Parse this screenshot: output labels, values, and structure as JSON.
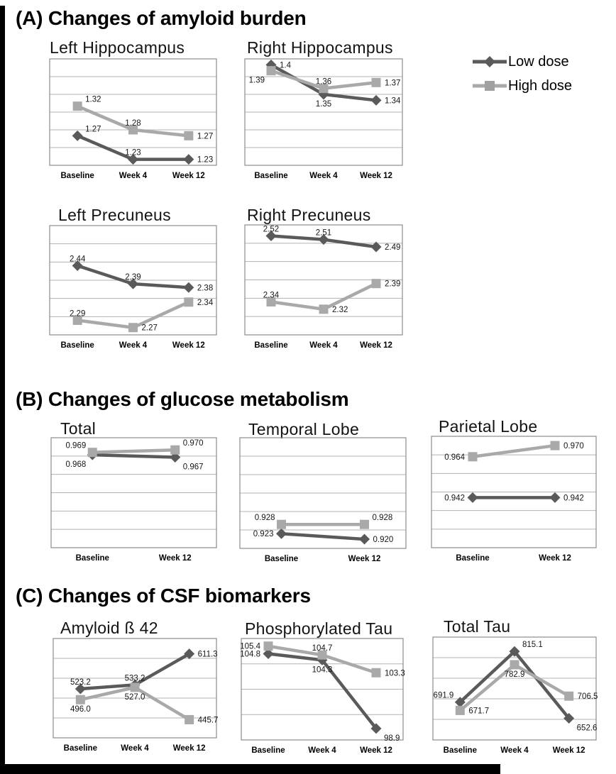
{
  "page": {
    "background": "#ffffff",
    "frame_color": "#000000"
  },
  "sections": [
    {
      "id": "A",
      "title": "(A) Changes of amyloid burden"
    },
    {
      "id": "B",
      "title": "(B) Changes of glucose metabolism"
    },
    {
      "id": "C",
      "title": "(C) Changes of CSF biomarkers"
    }
  ],
  "legend": {
    "position": "top-right",
    "items": [
      {
        "label": "Low dose",
        "series": "low"
      },
      {
        "label": "High dose",
        "series": "high"
      }
    ]
  },
  "series_styles": {
    "low": {
      "color": "#5a5a5a",
      "marker": "diamond"
    },
    "high": {
      "color": "#a9a9a9",
      "marker": "square"
    }
  },
  "chart_data": [
    {
      "id": "left-hippocampus",
      "section": "A",
      "type": "line",
      "title": "Left Hippocampus",
      "categories": [
        "Baseline",
        "Week 4",
        "Week 12"
      ],
      "ylim": [
        1.22,
        1.4
      ],
      "grid_divisions": 6,
      "grid": true,
      "series": [
        {
          "name": "Low dose",
          "key": "low",
          "values": [
            1.27,
            1.23,
            1.23
          ],
          "labels": [
            "1.27",
            "1.23",
            "1.23"
          ],
          "label_pos": [
            "above-right",
            "above",
            "right"
          ]
        },
        {
          "name": "High dose",
          "key": "high",
          "values": [
            1.32,
            1.28,
            1.27
          ],
          "labels": [
            "1.32",
            "1.28",
            "1.27"
          ],
          "label_pos": [
            "above-right",
            "above",
            "right"
          ]
        }
      ]
    },
    {
      "id": "right-hippocampus",
      "section": "A",
      "type": "line",
      "title": "Right Hippocampus",
      "categories": [
        "Baseline",
        "Week 4",
        "Week 12"
      ],
      "ylim": [
        1.23,
        1.41
      ],
      "grid_divisions": 6,
      "grid": true,
      "series": [
        {
          "name": "Low dose",
          "key": "low",
          "values": [
            1.4,
            1.35,
            1.34
          ],
          "labels": [
            "1.4",
            "1.35",
            "1.34"
          ],
          "label_pos": [
            "right",
            "below",
            "right"
          ]
        },
        {
          "name": "High dose",
          "key": "high",
          "values": [
            1.39,
            1.36,
            1.37
          ],
          "labels": [
            "1.39",
            "1.36",
            "1.37"
          ],
          "label_pos": [
            "below-left",
            "above",
            "right"
          ]
        }
      ]
    },
    {
      "id": "left-precuneus",
      "section": "A",
      "type": "line",
      "title": "Left Precuneus",
      "categories": [
        "Baseline",
        "Week 4",
        "Week 12"
      ],
      "ylim": [
        2.25,
        2.55
      ],
      "grid_divisions": 6,
      "grid": true,
      "series": [
        {
          "name": "Low dose",
          "key": "low",
          "values": [
            2.44,
            2.39,
            2.38
          ],
          "labels": [
            "2.44",
            "2.39",
            "2.38"
          ],
          "label_pos": [
            "above",
            "above",
            "right"
          ]
        },
        {
          "name": "High dose",
          "key": "high",
          "values": [
            2.29,
            2.27,
            2.34
          ],
          "labels": [
            "2.29",
            "2.27",
            "2.34"
          ],
          "label_pos": [
            "above",
            "right",
            "right"
          ]
        }
      ]
    },
    {
      "id": "right-precuneus",
      "section": "A",
      "type": "line",
      "title": "Right Precuneus",
      "categories": [
        "Baseline",
        "Week 4",
        "Week 12"
      ],
      "ylim": [
        2.25,
        2.55
      ],
      "grid_divisions": 6,
      "grid": true,
      "series": [
        {
          "name": "Low dose",
          "key": "low",
          "values": [
            2.52,
            2.51,
            2.49
          ],
          "labels": [
            "2.52",
            "2.51",
            "2.49"
          ],
          "label_pos": [
            "above",
            "above",
            "right"
          ]
        },
        {
          "name": "High dose",
          "key": "high",
          "values": [
            2.34,
            2.32,
            2.39
          ],
          "labels": [
            "2.34",
            "2.32",
            "2.39"
          ],
          "label_pos": [
            "above",
            "right",
            "right"
          ]
        }
      ]
    },
    {
      "id": "total",
      "section": "B",
      "type": "line",
      "title": "Total",
      "categories": [
        "Baseline",
        "Week 12"
      ],
      "ylim": [
        0.93,
        0.975
      ],
      "grid_divisions": 6,
      "grid": true,
      "series": [
        {
          "name": "Low dose",
          "key": "low",
          "values": [
            0.968,
            0.967
          ],
          "labels": [
            "0.968",
            "0.967"
          ],
          "label_pos": [
            "below-left",
            "below-right"
          ]
        },
        {
          "name": "High dose",
          "key": "high",
          "values": [
            0.969,
            0.97
          ],
          "labels": [
            "0.969",
            "0.970"
          ],
          "label_pos": [
            "above-left",
            "above-right"
          ]
        }
      ]
    },
    {
      "id": "temporal-lobe",
      "section": "B",
      "type": "line",
      "title": "Temporal Lobe",
      "categories": [
        "Baseline",
        "Week 12"
      ],
      "ylim": [
        0.915,
        0.975
      ],
      "grid_divisions": 6,
      "grid": true,
      "series": [
        {
          "name": "Low dose",
          "key": "low",
          "values": [
            0.923,
            0.92
          ],
          "labels": [
            "0.923",
            "0.920"
          ],
          "label_pos": [
            "left",
            "right"
          ]
        },
        {
          "name": "High dose",
          "key": "high",
          "values": [
            0.928,
            0.928
          ],
          "labels": [
            "0.928",
            "0.928"
          ],
          "label_pos": [
            "above-left",
            "above-right"
          ]
        }
      ]
    },
    {
      "id": "parietal-lobe",
      "section": "B",
      "type": "line",
      "title": "Parietal Lobe",
      "categories": [
        "Baseline",
        "Week 12"
      ],
      "ylim": [
        0.915,
        0.975
      ],
      "grid_divisions": 6,
      "grid": true,
      "series": [
        {
          "name": "Low dose",
          "key": "low",
          "values": [
            0.942,
            0.942
          ],
          "labels": [
            "0.942",
            "0.942"
          ],
          "label_pos": [
            "left",
            "right"
          ]
        },
        {
          "name": "High dose",
          "key": "high",
          "values": [
            0.964,
            0.97
          ],
          "labels": [
            "0.964",
            "0.970"
          ],
          "label_pos": [
            "left",
            "right"
          ]
        }
      ]
    },
    {
      "id": "amyloid-beta-42",
      "section": "C",
      "type": "line",
      "title": "Amyloid ß 42",
      "categories": [
        "Baseline",
        "Week 4",
        "Week 12"
      ],
      "ylim": [
        400,
        650
      ],
      "grid_divisions": 5,
      "grid": true,
      "series": [
        {
          "name": "Low dose",
          "key": "low",
          "values": [
            523.2,
            533.2,
            611.3
          ],
          "labels": [
            "523.2",
            "533.2",
            "611.3"
          ],
          "label_pos": [
            "above",
            "above",
            "right"
          ]
        },
        {
          "name": "High dose",
          "key": "high",
          "values": [
            496.0,
            527.0,
            445.7
          ],
          "labels": [
            "496.0",
            "527.0",
            "445.7"
          ],
          "label_pos": [
            "below",
            "below",
            "right"
          ]
        }
      ]
    },
    {
      "id": "phosphorylated-tau",
      "section": "C",
      "type": "line",
      "title": "Phosphorylated Tau",
      "categories": [
        "Baseline",
        "Week 4",
        "Week 12"
      ],
      "ylim": [
        98,
        106
      ],
      "grid_divisions": 4,
      "grid": true,
      "series": [
        {
          "name": "Low dose",
          "key": "low",
          "values": [
            104.8,
            104.3,
            98.9
          ],
          "labels": [
            "104.8",
            "104.3",
            "98.9"
          ],
          "label_pos": [
            "left",
            "below",
            "below-right"
          ]
        },
        {
          "name": "High dose",
          "key": "high",
          "values": [
            105.4,
            104.7,
            103.3
          ],
          "labels": [
            "105.4",
            "104.7",
            "103.3"
          ],
          "label_pos": [
            "left",
            "above",
            "right"
          ]
        }
      ]
    },
    {
      "id": "total-tau",
      "section": "C",
      "type": "line",
      "title": "Total Tau",
      "categories": [
        "Baseline",
        "Week 4",
        "Week 12"
      ],
      "ylim": [
        600,
        850
      ],
      "grid_divisions": 5,
      "grid": true,
      "series": [
        {
          "name": "Low dose",
          "key": "low",
          "values": [
            691.9,
            815.1,
            652.6
          ],
          "labels": [
            "691.9",
            "815.1",
            "652.6"
          ],
          "label_pos": [
            "above-left",
            "above-right",
            "below-right"
          ]
        },
        {
          "name": "High dose",
          "key": "high",
          "values": [
            671.7,
            782.9,
            706.5
          ],
          "labels": [
            "671.7",
            "782.9",
            "706.5"
          ],
          "label_pos": [
            "right",
            "below",
            "right"
          ]
        }
      ]
    }
  ]
}
